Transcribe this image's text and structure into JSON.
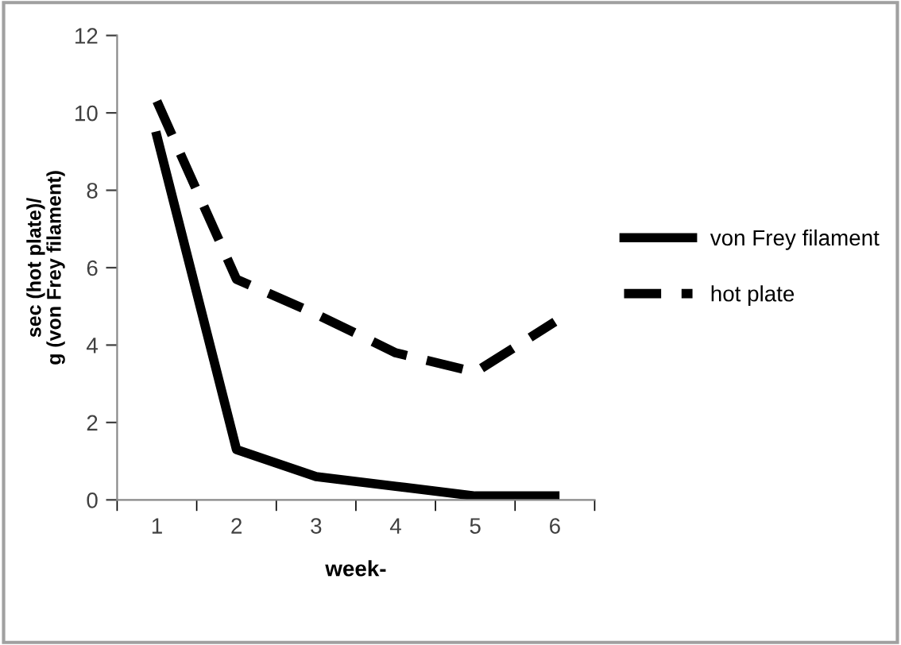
{
  "chart_data": {
    "type": "line",
    "xlabel": "week-",
    "ylabel": "sec (hot plate)/\ng (von Frey filament)",
    "categories": [
      "1",
      "2",
      "3",
      "4",
      "5",
      "6"
    ],
    "series": [
      {
        "name": "von Frey filament",
        "color": "#000000",
        "line_style": "solid",
        "values": [
          9.4,
          1.3,
          0.6,
          0.35,
          0.1,
          0.1
        ]
      },
      {
        "name": "hot plate",
        "color": "#000000",
        "line_style": "dashed",
        "values": [
          10.3,
          5.7,
          4.8,
          3.8,
          3.3,
          4.6
        ]
      }
    ],
    "ylim": [
      0,
      12
    ],
    "yticks": [
      0,
      2,
      4,
      6,
      8,
      10,
      12
    ],
    "grid": false,
    "legend": "right",
    "marker": "none"
  }
}
